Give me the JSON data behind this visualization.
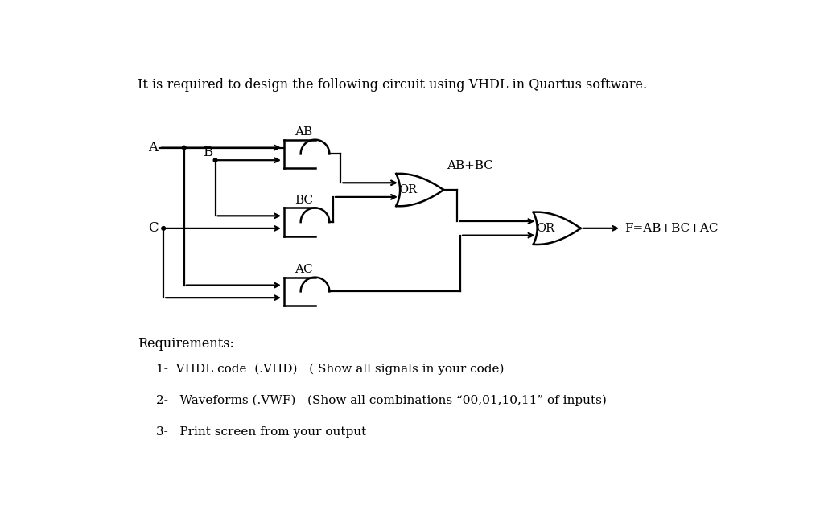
{
  "title_text": "It is required to design the following circuit using VHDL in Quartus software.",
  "background_color": "#ffffff",
  "text_color": "#000000",
  "requirements_title": "Requirements:",
  "req1": "1-  VHDL code  (.VHD)   ( Show all signals in your code)",
  "req2": "2-   Waveforms (.VWF)   (Show all combinations “00,01,10,11” of inputs)",
  "req3": "3-   Print screen from your output",
  "label_A": "A",
  "label_B": "B",
  "label_C": "C",
  "label_AB": "AB",
  "label_BC": "BC",
  "label_AC": "AC",
  "label_ABBC": "AB+BC",
  "label_OR1": "OR",
  "label_OR2": "OR",
  "label_F": "F=AB+BC+AC",
  "font_family": "DejaVu Serif",
  "gate_lw": 1.8,
  "wire_lw": 1.6
}
